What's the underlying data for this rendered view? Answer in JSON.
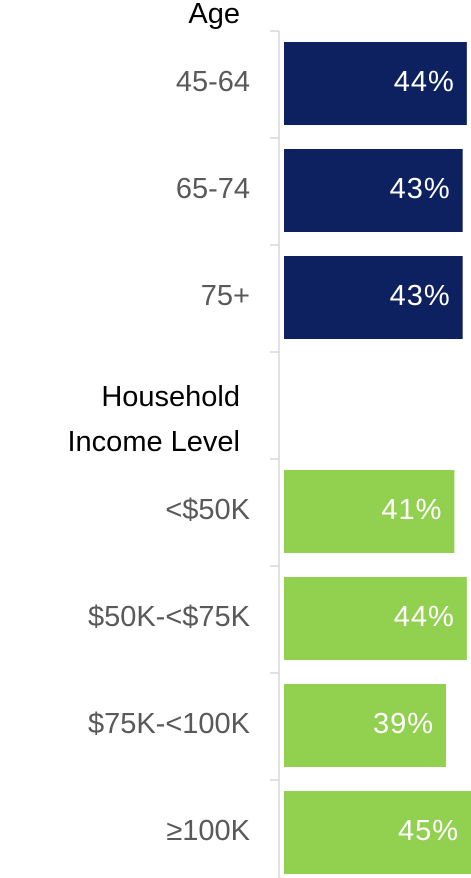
{
  "chart_data": {
    "type": "bar",
    "orientation": "horizontal",
    "xlim": [
      0,
      45
    ],
    "groups": [
      {
        "name": "Age",
        "color": "#0d2160",
        "categories": [
          "45-64",
          "65-74",
          "75+"
        ],
        "values": [
          44,
          43,
          43
        ],
        "value_labels": [
          "44%",
          "43%",
          "43%"
        ]
      },
      {
        "name": "Household Income Level",
        "color": "#92d050",
        "categories": [
          "<$50K",
          "$50K-<$75K",
          "$75K-<100K",
          "≥100K"
        ],
        "values": [
          41,
          44,
          39,
          45
        ],
        "value_labels": [
          "41%",
          "44%",
          "39%",
          "45%"
        ]
      }
    ]
  }
}
